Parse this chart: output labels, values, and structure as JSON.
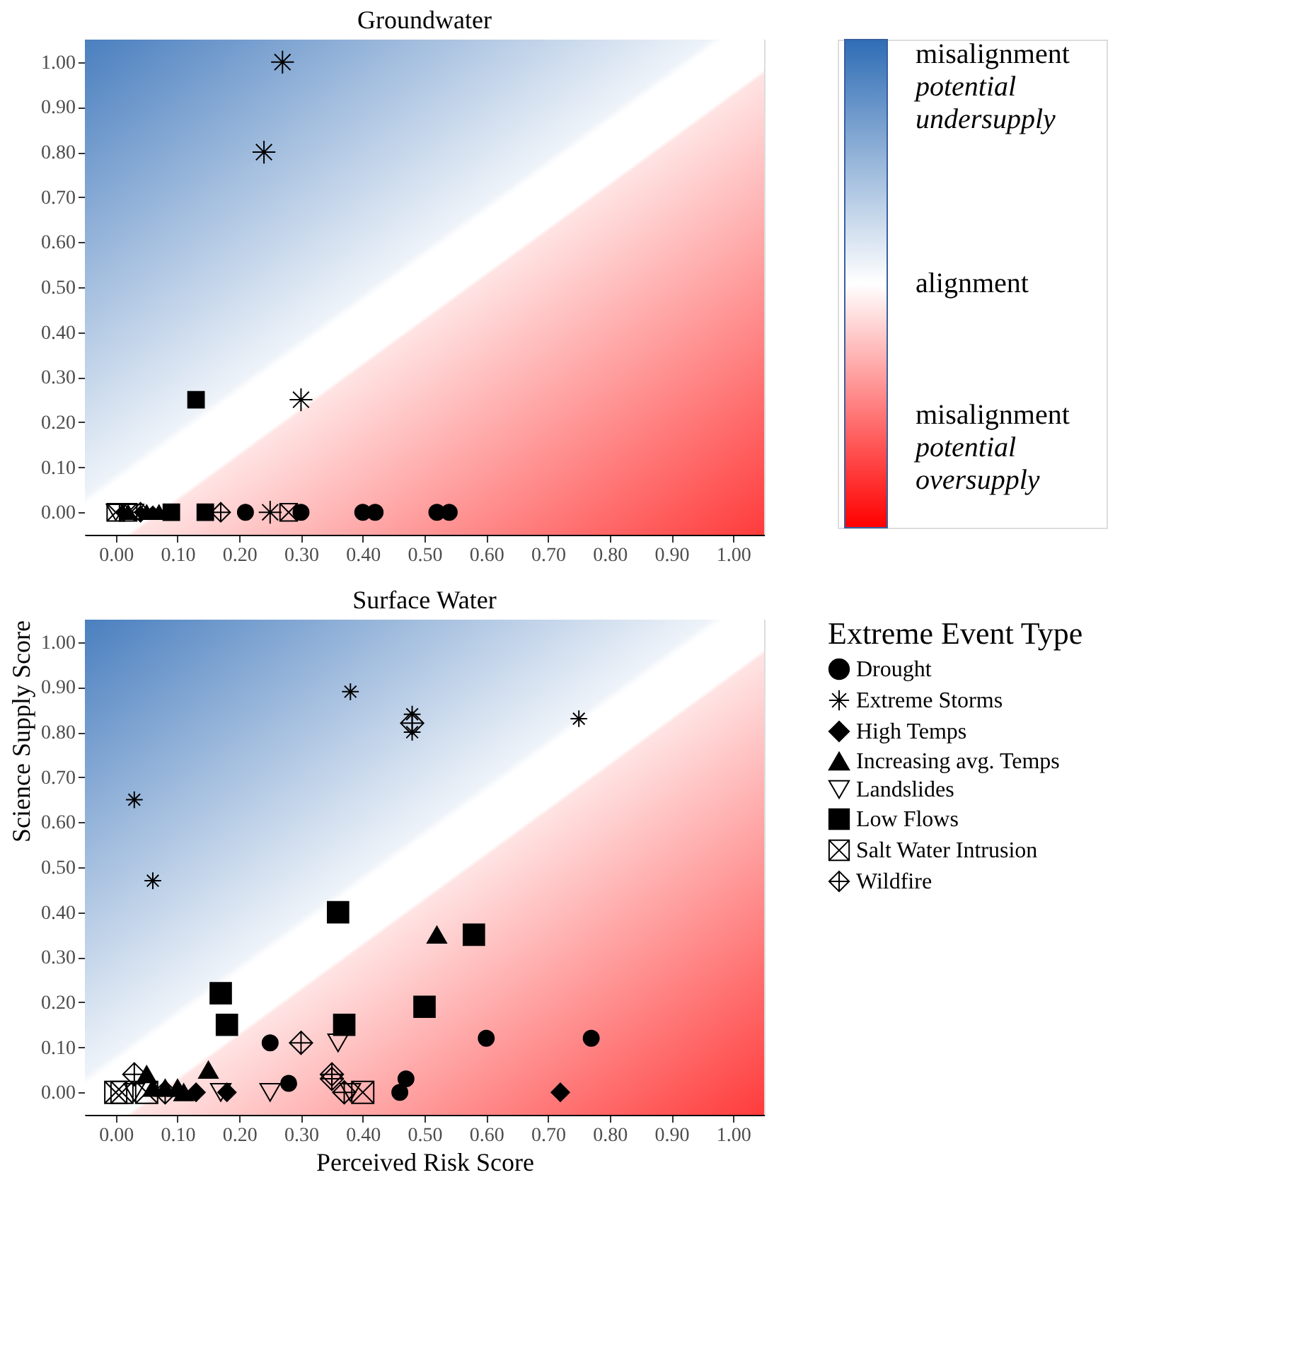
{
  "chart_data": [
    {
      "type": "scatter",
      "title": "Groundwater",
      "xlim": [
        -0.05,
        1.05
      ],
      "ylim": [
        -0.05,
        1.05
      ],
      "xticks": [
        {
          "value": 0,
          "label": "0.00"
        },
        {
          "value": 0.1,
          "label": "0.10"
        },
        {
          "value": 0.2,
          "label": "0.20"
        },
        {
          "value": 0.3,
          "label": "0.30"
        },
        {
          "value": 0.4,
          "label": "0.40"
        },
        {
          "value": 0.5,
          "label": "0.50"
        },
        {
          "value": 0.6,
          "label": "0.60"
        },
        {
          "value": 0.7,
          "label": "0.70"
        },
        {
          "value": 0.8,
          "label": "0.80"
        },
        {
          "value": 0.9,
          "label": "0.90"
        },
        {
          "value": 1,
          "label": "1.00"
        }
      ],
      "yticks": [
        {
          "value": 0,
          "label": "0.00"
        },
        {
          "value": 0.1,
          "label": "0.10"
        },
        {
          "value": 0.2,
          "label": "0.20"
        },
        {
          "value": 0.3,
          "label": "0.30"
        },
        {
          "value": 0.4,
          "label": "0.40"
        },
        {
          "value": 0.5,
          "label": "0.50"
        },
        {
          "value": 0.6,
          "label": "0.60"
        },
        {
          "value": 0.7,
          "label": "0.70"
        },
        {
          "value": 0.8,
          "label": "0.80"
        },
        {
          "value": 0.9,
          "label": "0.90"
        },
        {
          "value": 1,
          "label": "1.00"
        }
      ],
      "series": [
        {
          "name": null,
          "color": "#000000",
          "marker": "circle",
          "x": [
            0.21,
            0.3,
            0.4,
            0.42,
            0.52,
            0.54
          ],
          "values": [
            0,
            0,
            0,
            0,
            0,
            0
          ]
        },
        {
          "name": null,
          "color": "#000000",
          "marker": "cross",
          "x": [
            0.27,
            0.24,
            0.3,
            0.25
          ],
          "values": [
            1.0,
            0.8,
            0.25,
            0
          ]
        },
        {
          "name": null,
          "color": "#000000",
          "marker": "diamond",
          "x": [
            0.01,
            0.04,
            0.06
          ],
          "values": [
            0,
            0,
            0
          ]
        },
        {
          "name": null,
          "color": "#000000",
          "marker": "triangle",
          "x": [
            0.02,
            0.05,
            0.07
          ],
          "values": [
            0,
            0,
            0
          ]
        },
        {
          "name": null,
          "color": "#000000",
          "marker": "triangle",
          "x": [
            0.0,
            0.03
          ],
          "values": [
            0,
            0
          ]
        },
        {
          "name": null,
          "color": "#000000",
          "marker": "square",
          "x": [
            0.13,
            0.09,
            0.145
          ],
          "values": [
            0.25,
            0,
            0
          ]
        },
        {
          "name": null,
          "color": "#000000",
          "marker": "cross",
          "x": [
            0.0,
            0.02,
            0.28
          ],
          "values": [
            0,
            0,
            0
          ]
        },
        {
          "name": null,
          "color": "#000000",
          "marker": "cross",
          "x": [
            0.04,
            0.17
          ],
          "values": [
            0,
            0
          ]
        }
      ]
    },
    {
      "type": "scatter",
      "title": "Surface Water",
      "xlabel": "Perceived Risk Score",
      "ylabel": "Science Supply Score",
      "legend_title": "Extreme Event Type",
      "legend": "right",
      "xlim": [
        -0.05,
        1.05
      ],
      "ylim": [
        -0.05,
        1.05
      ],
      "xticks": [
        {
          "value": 0,
          "label": "0.00"
        },
        {
          "value": 0.1,
          "label": "0.10"
        },
        {
          "value": 0.2,
          "label": "0.20"
        },
        {
          "value": 0.3,
          "label": "0.30"
        },
        {
          "value": 0.4,
          "label": "0.40"
        },
        {
          "value": 0.5,
          "label": "0.50"
        },
        {
          "value": 0.6,
          "label": "0.60"
        },
        {
          "value": 0.7,
          "label": "0.70"
        },
        {
          "value": 0.8,
          "label": "0.80"
        },
        {
          "value": 0.9,
          "label": "0.90"
        },
        {
          "value": 1,
          "label": "1.00"
        }
      ],
      "yticks": [
        {
          "value": 0,
          "label": "0.00"
        },
        {
          "value": 0.1,
          "label": "0.10"
        },
        {
          "value": 0.2,
          "label": "0.20"
        },
        {
          "value": 0.3,
          "label": "0.30"
        },
        {
          "value": 0.4,
          "label": "0.40"
        },
        {
          "value": 0.5,
          "label": "0.50"
        },
        {
          "value": 0.6,
          "label": "0.60"
        },
        {
          "value": 0.7,
          "label": "0.70"
        },
        {
          "value": 0.8,
          "label": "0.80"
        },
        {
          "value": 0.9,
          "label": "0.90"
        },
        {
          "value": 1,
          "label": "1.00"
        }
      ],
      "series": [
        {
          "name": "Drought",
          "color": "#000000",
          "marker": "circle",
          "x": [
            0.25,
            0.28,
            0.6,
            0.77,
            0.47,
            0.46
          ],
          "values": [
            0.11,
            0.02,
            0.12,
            0.12,
            0.03,
            0
          ]
        },
        {
          "name": "Extreme Storms",
          "color": "#000000",
          "marker": "cross",
          "x": [
            0.03,
            0.06,
            0.38,
            0.48,
            0.48,
            0.75
          ],
          "values": [
            0.65,
            0.47,
            0.89,
            0.84,
            0.8,
            0.83
          ]
        },
        {
          "name": "High Temps",
          "color": "#000000",
          "marker": "diamond",
          "x": [
            0.72,
            0.13,
            0.18
          ],
          "values": [
            0,
            0,
            0
          ]
        },
        {
          "name": "Increasing avg. Temps",
          "color": "#000000",
          "marker": "triangle",
          "x": [
            0.52,
            0.15,
            0.05,
            0.06,
            0.08,
            0.1,
            0.11
          ],
          "values": [
            0.35,
            0.05,
            0.04,
            0.01,
            0.01,
            0.01,
            0
          ]
        },
        {
          "name": "Landslides",
          "color": "#000000",
          "marker": "triangle",
          "x": [
            0.36,
            0.25,
            0.17,
            0.03,
            0.38
          ],
          "values": [
            0.11,
            0,
            0,
            0,
            0
          ]
        },
        {
          "name": "Low Flows",
          "color": "#000000",
          "marker": "square",
          "x": [
            0.36,
            0.58,
            0.17,
            0.18,
            0.37,
            0.5
          ],
          "values": [
            0.4,
            0.35,
            0.22,
            0.15,
            0.15,
            0.19
          ]
        },
        {
          "name": "Salt Water Intrusion",
          "color": "#000000",
          "marker": "cross",
          "x": [
            0.0,
            0.01,
            0.4,
            0.05
          ],
          "values": [
            0,
            0,
            0,
            0
          ]
        },
        {
          "name": "Wildfire",
          "color": "#000000",
          "marker": "cross",
          "x": [
            0.48,
            0.3,
            0.35,
            0.35,
            0.37,
            0.03,
            0.08
          ],
          "values": [
            0.82,
            0.11,
            0.04,
            0.03,
            0,
            0.04,
            0
          ]
        }
      ]
    },
    {
      "type": "other",
      "annotations": [
        "misalignment",
        "potential\nundersupply",
        "alignment",
        "misalignment",
        "potential\noversupply"
      ]
    }
  ]
}
